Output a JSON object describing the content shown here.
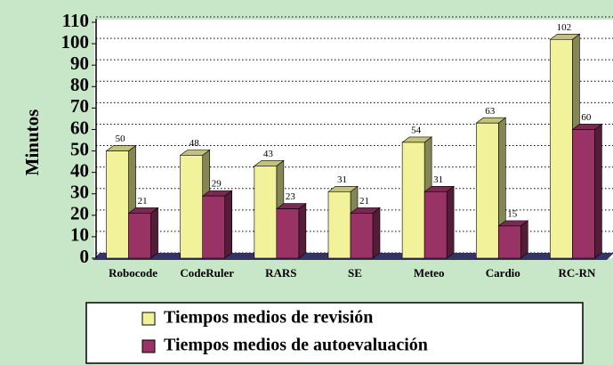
{
  "chart_data": {
    "type": "bar",
    "ylabel": "Minutos",
    "categories": [
      "Robocode",
      "CodeRuler",
      "RARS",
      "SE",
      "Meteo",
      "Cardio",
      "RC-RN"
    ],
    "series": [
      {
        "name": "Tiempos medios de revisión",
        "color": "#f2f29a",
        "values": [
          50,
          48,
          43,
          31,
          54,
          63,
          102
        ]
      },
      {
        "name": "Tiempos medios de autoevaluación",
        "color": "#993366",
        "values": [
          21,
          29,
          23,
          21,
          31,
          15,
          60
        ]
      }
    ],
    "ylim": [
      0,
      110
    ],
    "yticks": [
      0,
      10,
      20,
      30,
      40,
      50,
      60,
      70,
      80,
      90,
      100,
      110
    ],
    "grid": true
  }
}
